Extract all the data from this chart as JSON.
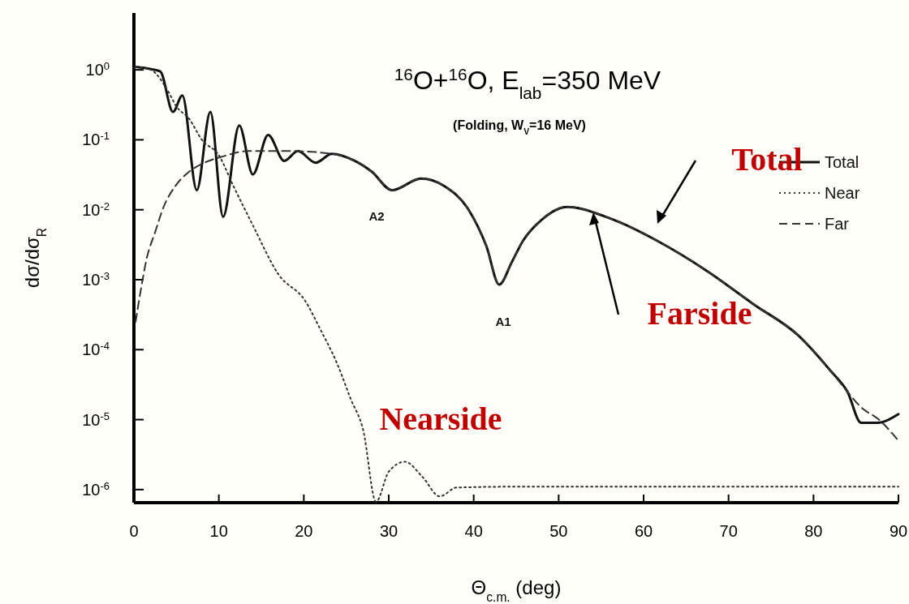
{
  "chart_data": {
    "type": "line",
    "title": "$^{16}$O+$^{16}$O, E$_{lab}$=350 MeV",
    "subtitle": "(Folding, W$_{V}$=16 MeV)",
    "xlabel": "Θ$_{c.m.}$ (deg)",
    "ylabel": "dσ/dσ$_{R}$",
    "xlim": [
      0,
      90
    ],
    "xticks": [
      0,
      10,
      20,
      30,
      40,
      50,
      60,
      70,
      80,
      90
    ],
    "ylim": [
      6.5e-07,
      6.5
    ],
    "log": "y",
    "yticks": [
      {
        "value": 1,
        "label": "10$^{0}$"
      },
      {
        "value": 0.1,
        "label": "10$^{-1}$"
      },
      {
        "value": 0.01,
        "label": "10$^{-2}$"
      },
      {
        "value": 0.001,
        "label": "10$^{-3}$"
      },
      {
        "value": 0.0001,
        "label": "10$^{-4}$"
      },
      {
        "value": 1e-05,
        "label": "10$^{-5}$"
      },
      {
        "value": 1e-06,
        "label": "10$^{-6}$"
      }
    ],
    "grid": false,
    "legend": "top right",
    "marker": "none",
    "series": [
      {
        "name": "Total",
        "color": "#111111",
        "line_style": "solid",
        "x": [
          0.2,
          1.5,
          3.1,
          4.6,
          5.7,
          7.4,
          9.0,
          10.5,
          12.4,
          14.0,
          15.8,
          17.7,
          19.3,
          21.4,
          23.3,
          26,
          28,
          30.4,
          33.8,
          36.5,
          39.4,
          41.5,
          43,
          44.5,
          45.8,
          48,
          51,
          55.6,
          61.6,
          67.6,
          72.9,
          78.2,
          82,
          84,
          85.6,
          87.5,
          90
        ],
        "values": [
          1.1,
          1.05,
          0.95,
          0.25,
          0.43,
          0.019,
          0.25,
          0.0079,
          0.16,
          0.032,
          0.117,
          0.05,
          0.069,
          0.047,
          0.063,
          0.05,
          0.035,
          0.019,
          0.028,
          0.022,
          0.01,
          0.003,
          0.00085,
          0.0018,
          0.0036,
          0.0072,
          0.011,
          0.0079,
          0.0036,
          0.0013,
          0.00045,
          0.00016,
          5e-05,
          2.5e-05,
          9e-06,
          9e-06,
          1.2e-05
        ]
      },
      {
        "name": "Near",
        "color": "#333333",
        "line_style": "dotted",
        "x": [
          0.2,
          2,
          4,
          5,
          6.5,
          8,
          10,
          11.7,
          14,
          17,
          20.2,
          21.9,
          24,
          25.5,
          27,
          28.5,
          30,
          31.9,
          34,
          36,
          38,
          45,
          60,
          75,
          90
        ],
        "values": [
          1.1,
          1.0,
          0.5,
          0.3,
          0.2,
          0.1,
          0.06,
          0.022,
          0.006,
          0.0012,
          0.00049,
          0.0002,
          6e-05,
          2e-05,
          7e-06,
          6.7e-07,
          1.8e-06,
          2.5e-06,
          1.5e-06,
          8e-07,
          1.07e-06,
          1.1e-06,
          1.1e-06,
          1.1e-06,
          1.1e-06
        ]
      },
      {
        "name": "Far",
        "color": "#333333",
        "line_style": "dashed",
        "x": [
          0.2,
          0.8,
          1.5,
          2.5,
          3.5,
          4.9,
          6.5,
          8.3,
          10.5,
          13.4,
          18.5,
          23.3,
          26,
          28,
          30.4,
          33.8,
          36.5,
          39.4,
          41.5,
          43,
          44.5,
          45.8,
          48,
          51,
          55.6,
          61.6,
          67.6,
          72.9,
          78.2,
          82,
          84,
          85.6,
          87.7,
          90
        ],
        "values": [
          0.00025,
          0.0007,
          0.002,
          0.0048,
          0.011,
          0.022,
          0.035,
          0.047,
          0.058,
          0.069,
          0.069,
          0.063,
          0.05,
          0.035,
          0.019,
          0.028,
          0.022,
          0.01,
          0.003,
          0.00085,
          0.0018,
          0.0036,
          0.0072,
          0.011,
          0.0079,
          0.0036,
          0.0013,
          0.00045,
          0.00016,
          5e-05,
          2.5e-05,
          1.5e-05,
          1e-05,
          5e-06
        ]
      }
    ],
    "annotations": [
      "A2",
      "A1",
      "Total",
      "Farside",
      "Nearside"
    ]
  }
}
